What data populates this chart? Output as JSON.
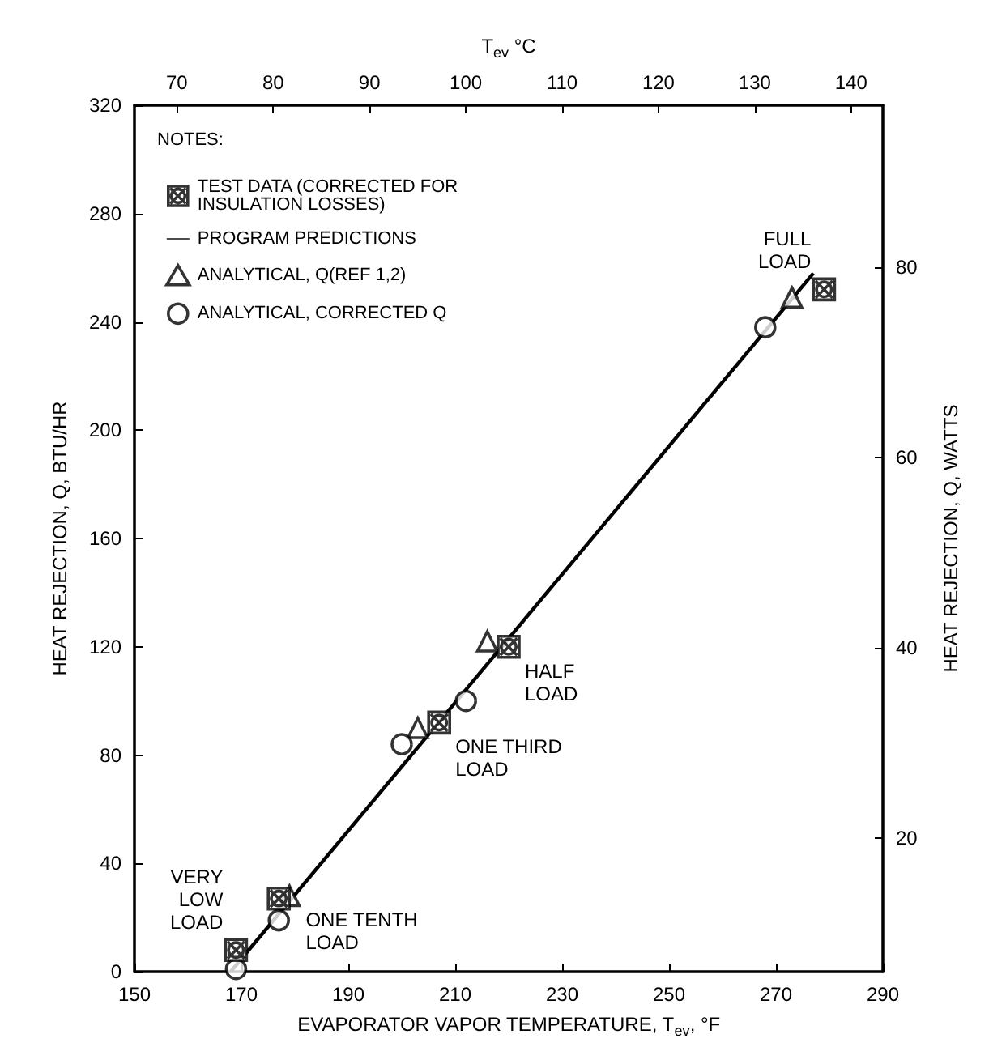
{
  "chart_data": {
    "type": "scatter",
    "xlabel": "EVAPORATOR VAPOR TEMPERATURE, T$_{ev}$, °F",
    "x2label": "T$_{ev}$ °C",
    "ylabel": "HEAT REJECTION, Q, BTU/HR",
    "y2label": "HEAT REJECTION, Q, WATTS",
    "legend_title": "NOTES:",
    "legend": "top left",
    "grid": false,
    "xlim": [
      150,
      290
    ],
    "xticks": [
      150,
      170,
      190,
      210,
      230,
      250,
      270,
      290
    ],
    "x2lim": [
      65.6,
      143.3
    ],
    "x2ticks": [
      70,
      80,
      90,
      100,
      110,
      120,
      130,
      140
    ],
    "ylim": [
      0,
      320
    ],
    "yticks": [
      0,
      40,
      80,
      120,
      160,
      200,
      240,
      280,
      320
    ],
    "y2lim": [
      6,
      97
    ],
    "y2ticks": [
      20,
      40,
      60,
      80
    ],
    "series": [
      {
        "name": "TEST DATA (CORRECTED FOR\nINSULATION LOSSES)",
        "marker": "cross",
        "color": "#000000",
        "x": [
          169,
          177,
          207,
          220,
          279
        ],
        "values": [
          8,
          27,
          92,
          120,
          252
        ]
      },
      {
        "name": "PROGRAM PREDICTIONS",
        "type": "line",
        "marker": "none",
        "line_style": "solid",
        "color": "#000000",
        "x": [
          168,
          277
        ],
        "values": [
          0,
          258
        ]
      },
      {
        "name": "ANALYTICAL, Q(REF 1,2)",
        "marker": "triangle",
        "color": "#000000",
        "x": [
          179,
          203,
          216,
          273
        ],
        "values": [
          28,
          90,
          122,
          249
        ]
      },
      {
        "name": "ANALYTICAL, CORRECTED Q",
        "marker": "circle",
        "color": "#000000",
        "x": [
          169,
          177,
          200,
          212,
          268
        ],
        "values": [
          1,
          19,
          84,
          100,
          238
        ]
      }
    ],
    "annotations": [
      {
        "text": "VERY\nLOW\nLOAD",
        "x": 169,
        "y": 8
      },
      {
        "text": "ONE TENTH\nLOAD",
        "x": 179,
        "y": 28
      },
      {
        "text": "ONE THIRD\nLOAD",
        "x": 207,
        "y": 92
      },
      {
        "text": "HALF\nLOAD",
        "x": 220,
        "y": 120
      },
      {
        "text": "FULL\nLOAD",
        "x": 279,
        "y": 252
      }
    ]
  }
}
